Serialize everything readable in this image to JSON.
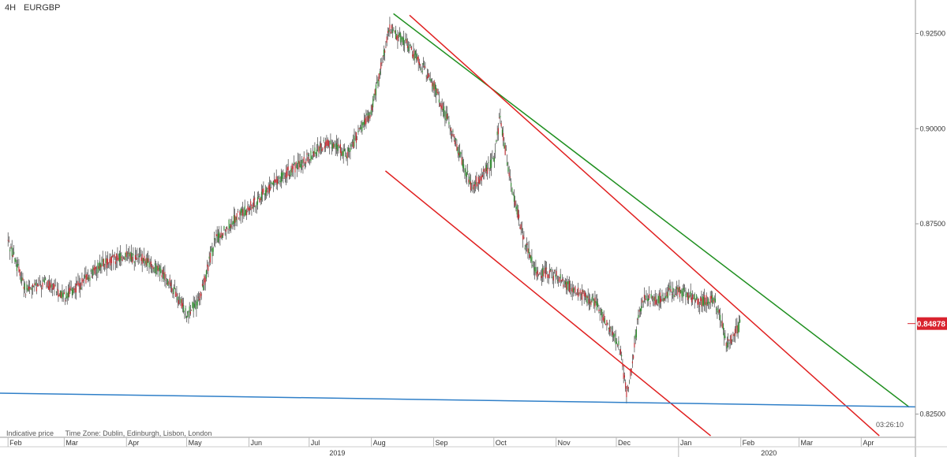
{
  "header": {
    "timeframe": "4H",
    "symbol": "EURGBP"
  },
  "footer": {
    "indicative": "Indicative price",
    "timezone": "Time Zone: Dublin, Edinburgh, Lisbon, London"
  },
  "clock": "03:26:10",
  "colors": {
    "bull": "#2e8b2e",
    "bear": "#c0272d",
    "resistance": "#1f8f1f",
    "channel": "#e02020",
    "support": "#2f7fc8",
    "price_tag": "#d9232e"
  },
  "chart_data": {
    "type": "line",
    "instrument": "EURGBP",
    "timeframe": "4H",
    "ylim": [
      0.8189,
      0.9338
    ],
    "y_ticks": [
      "0.92500",
      "0.90000",
      "0.87500",
      "0.82500"
    ],
    "y_tick_values": [
      0.925,
      0.9,
      0.875,
      0.825
    ],
    "last_price": "0.84878",
    "last_price_value": 0.84878,
    "x_month_labels": [
      "Feb",
      "Mar",
      "Apr",
      "May",
      "Jun",
      "Jul",
      "Aug",
      "Sep",
      "Oct",
      "Nov",
      "Dec",
      "Jan",
      "Feb",
      "Mar",
      "Apr"
    ],
    "x_month_dates": [
      "2019-02-01",
      "2019-03-01",
      "2019-04-01",
      "2019-05-01",
      "2019-06-01",
      "2019-07-01",
      "2019-08-01",
      "2019-09-01",
      "2019-10-01",
      "2019-11-01",
      "2019-12-01",
      "2020-01-01",
      "2020-02-01",
      "2020-03-01",
      "2020-04-01"
    ],
    "x_year_labels": [
      "2019",
      "2020"
    ],
    "x_year_dates": [
      "2019-07-15",
      "2020-02-15"
    ],
    "grid": false,
    "price_series": {
      "x": [
        "2019-02-01",
        "2019-02-10",
        "2019-02-20",
        "2019-03-01",
        "2019-03-10",
        "2019-03-20",
        "2019-04-01",
        "2019-04-10",
        "2019-04-20",
        "2019-05-01",
        "2019-05-07",
        "2019-05-15",
        "2019-05-25",
        "2019-06-01",
        "2019-06-15",
        "2019-07-01",
        "2019-07-10",
        "2019-07-20",
        "2019-08-01",
        "2019-08-10",
        "2019-08-20",
        "2019-09-01",
        "2019-09-10",
        "2019-09-20",
        "2019-10-01",
        "2019-10-04",
        "2019-10-10",
        "2019-10-16",
        "2019-10-22",
        "2019-11-01",
        "2019-11-10",
        "2019-11-20",
        "2019-12-01",
        "2019-12-03",
        "2019-12-06",
        "2019-12-09",
        "2019-12-12",
        "2019-12-15",
        "2019-12-20",
        "2019-12-28",
        "2020-01-05",
        "2020-01-12",
        "2020-01-18",
        "2020-01-22",
        "2020-01-25",
        "2020-01-28",
        "2020-02-01"
      ],
      "y": [
        0.8705,
        0.8575,
        0.8595,
        0.856,
        0.8595,
        0.8645,
        0.8665,
        0.8655,
        0.8615,
        0.8515,
        0.8545,
        0.8705,
        0.8765,
        0.879,
        0.8865,
        0.8925,
        0.8965,
        0.8935,
        0.9045,
        0.9265,
        0.9215,
        0.9115,
        0.8995,
        0.8845,
        0.8915,
        0.9025,
        0.8845,
        0.8705,
        0.8625,
        0.8615,
        0.8575,
        0.8545,
        0.8445,
        0.8415,
        0.8305,
        0.8385,
        0.8505,
        0.8565,
        0.8545,
        0.8575,
        0.8565,
        0.8545,
        0.8555,
        0.8505,
        0.8435,
        0.8455,
        0.8487
      ]
    },
    "lines": [
      {
        "kind": "resistance",
        "x": [
          "2019-08-12",
          "2020-04-25"
        ],
        "y": [
          0.9302,
          0.8268
        ]
      },
      {
        "kind": "channel-upper",
        "x": [
          "2019-08-20",
          "2020-04-10"
        ],
        "y": [
          0.9298,
          0.8193
        ]
      },
      {
        "kind": "channel-lower",
        "x": [
          "2019-08-08",
          "2020-01-17"
        ],
        "y": [
          0.8889,
          0.8193
        ]
      },
      {
        "kind": "support",
        "x": [
          "2019-01-28",
          "2020-04-28"
        ],
        "y": [
          0.8305,
          0.8269
        ]
      }
    ]
  }
}
